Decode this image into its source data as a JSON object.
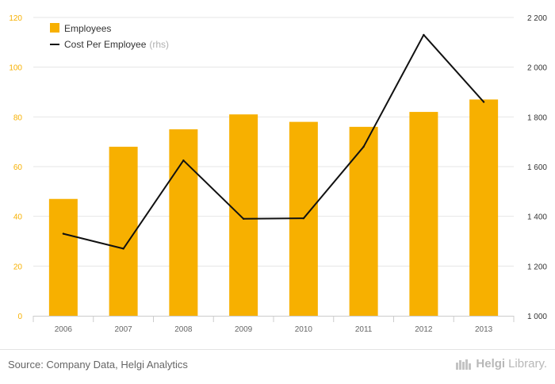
{
  "chart_data": {
    "type": "bar+line",
    "categories": [
      "2006",
      "2007",
      "2008",
      "2009",
      "2010",
      "2011",
      "2012",
      "2013"
    ],
    "series": [
      {
        "name": "Employees",
        "type": "bar",
        "axis": "left",
        "color": "#f7b000",
        "values": [
          47,
          68,
          75,
          81,
          78,
          76,
          82,
          87
        ]
      },
      {
        "name": "Cost Per Employee",
        "name_suffix": "(rhs)",
        "type": "line",
        "axis": "right",
        "color": "#111111",
        "values": [
          1330,
          1270,
          1625,
          1390,
          1392,
          1680,
          2130,
          1860
        ]
      }
    ],
    "y_left": {
      "min": 0,
      "max": 120,
      "ticks": [
        0,
        20,
        40,
        60,
        80,
        100,
        120
      ],
      "color": "#f7b000"
    },
    "y_right": {
      "min": 1000,
      "max": 2200,
      "ticks": [
        1000,
        1200,
        1400,
        1600,
        1800,
        2000,
        2200
      ],
      "tick_labels": [
        "1 000",
        "1 200",
        "1 400",
        "1 600",
        "1 800",
        "2 000",
        "2 200"
      ]
    },
    "grid": true,
    "legend": "top-left"
  },
  "footer": {
    "source": "Source: Company Data, Helgi Analytics",
    "brand_part1": "Helgi",
    "brand_part2": "Library."
  }
}
